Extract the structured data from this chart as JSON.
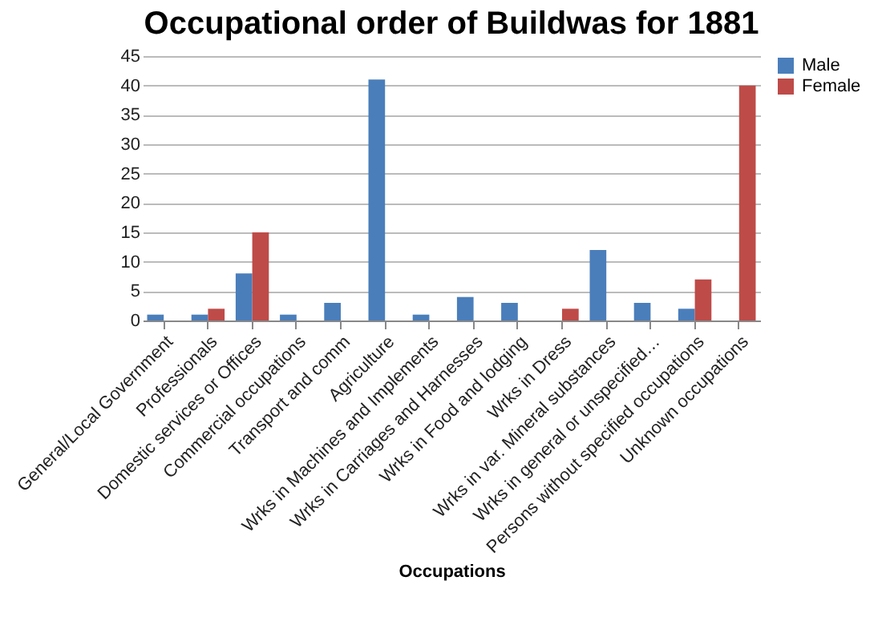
{
  "chart_data": {
    "type": "bar",
    "title": "Occupational order of Buildwas for 1881",
    "xlabel": "Occupations",
    "categories": [
      "General/Local Government",
      "Professionals",
      "Domestic services or Offices",
      "Commercial occupations",
      "Transport and comm",
      "Agriculture",
      "Wrks in Machines and Implements",
      "Wrks in Carriages and Harnesses",
      "Wrks in Food and lodging",
      "Wrks in Dress",
      "Wrks in var. Mineral substances",
      "Wrks in general or unspecified…",
      "Persons without specified occupations",
      "Unknown occupations"
    ],
    "series": [
      {
        "name": "Male",
        "color": "#4a7ebb",
        "values": [
          1,
          1,
          8,
          1,
          3,
          41,
          1,
          4,
          3,
          null,
          12,
          3,
          2,
          null
        ]
      },
      {
        "name": "Female",
        "color": "#be4b48",
        "values": [
          null,
          2,
          15,
          null,
          null,
          null,
          null,
          null,
          null,
          2,
          null,
          null,
          7,
          40
        ]
      }
    ],
    "ylim": [
      0,
      45
    ],
    "yticks": [
      0,
      5,
      10,
      15,
      20,
      25,
      30,
      35,
      40,
      45
    ],
    "grid": "y",
    "legend": "right"
  }
}
